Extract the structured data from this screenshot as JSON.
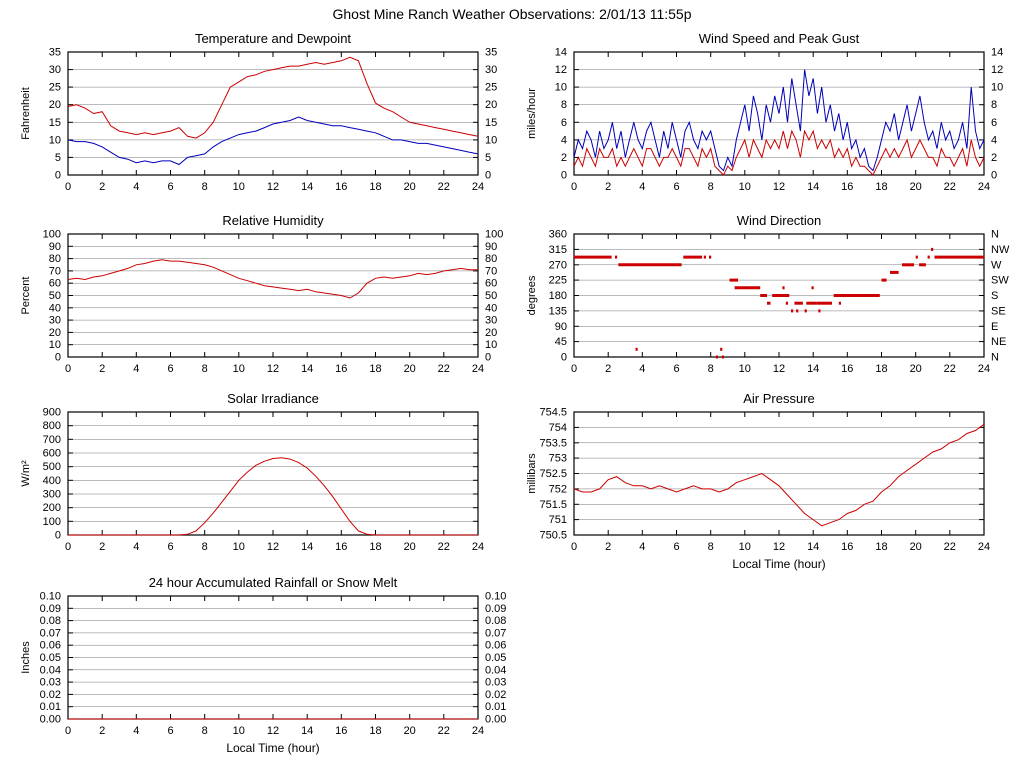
{
  "page_title": "Ghost Mine Ranch Weather Observations: 2/01/13 11:55p",
  "colors": {
    "red": "#cc0000",
    "blue": "#0000bb"
  },
  "chart_data": [
    {
      "type": "line",
      "title": "Temperature and Dewpoint",
      "xlabel": "",
      "ylabel": "Fahrenheit",
      "xlim": [
        0,
        24
      ],
      "xtick": 2,
      "ylim": [
        0,
        35
      ],
      "ytick": 5,
      "ydec": 0,
      "yfmt": "auto",
      "right": "same",
      "series": [
        {
          "name": "temperature",
          "color": "#cc0000",
          "x_step": 0.5,
          "values": [
            19.5,
            20,
            19,
            17.5,
            18,
            14,
            12.5,
            12,
            11.5,
            12,
            11.5,
            12,
            12.5,
            13.5,
            11,
            10.5,
            12,
            15,
            20,
            25,
            26.5,
            28,
            28.5,
            29.5,
            30,
            30.5,
            31,
            31,
            31.5,
            32,
            31.5,
            32,
            32.5,
            33.5,
            32.5,
            26,
            20.5,
            19,
            18,
            16.5,
            15,
            14.5,
            14,
            13.5,
            13,
            12.5,
            12,
            11.5,
            11
          ]
        },
        {
          "name": "dewpoint",
          "color": "#0000bb",
          "x_step": 0.5,
          "values": [
            10,
            9.5,
            9.5,
            9,
            8,
            6.5,
            5,
            4.5,
            3.5,
            4,
            3.5,
            4,
            4,
            3,
            5,
            5.5,
            6,
            8,
            9.5,
            10.5,
            11.5,
            12,
            12.5,
            13.5,
            14.5,
            15,
            15.5,
            16.5,
            15.5,
            15,
            14.5,
            14,
            14,
            13.5,
            13,
            12.5,
            12,
            11,
            10,
            10,
            9.5,
            9,
            9,
            8.5,
            8,
            7.5,
            7,
            6.5,
            6
          ]
        }
      ]
    },
    {
      "type": "line",
      "title": "Wind Speed and Peak Gust",
      "xlabel": "",
      "ylabel": "miles/hour",
      "xlim": [
        0,
        24
      ],
      "xtick": 2,
      "ylim": [
        0,
        14
      ],
      "ytick": 2,
      "ydec": 0,
      "yfmt": "auto",
      "right": "same",
      "series": [
        {
          "name": "peak-gust",
          "color": "#0000bb",
          "x_step": 0.25,
          "values": [
            2,
            4,
            3,
            5,
            4,
            2,
            5,
            3,
            4,
            6,
            3,
            5,
            2,
            4,
            6,
            4,
            3,
            5,
            6,
            4,
            2,
            5,
            3,
            6,
            4,
            2,
            5,
            6,
            4,
            3,
            5,
            4,
            5,
            3,
            1,
            0.5,
            2,
            1,
            4,
            6,
            8,
            5,
            9,
            7,
            4,
            8,
            6,
            9,
            7,
            10,
            6,
            11,
            8,
            5,
            12,
            9,
            11,
            7,
            10,
            6,
            8,
            5,
            7,
            4,
            6,
            3,
            4,
            2,
            3,
            1,
            0.5,
            2,
            4,
            6,
            5,
            7,
            4,
            6,
            8,
            5,
            7,
            9,
            6,
            4,
            5,
            3,
            6,
            4,
            5,
            3,
            4,
            6,
            3,
            10,
            5,
            3,
            4
          ]
        },
        {
          "name": "wind-speed",
          "color": "#cc0000",
          "x_step": 0.25,
          "values": [
            1,
            2,
            1,
            3,
            2,
            1,
            3,
            2,
            2,
            3,
            1,
            2,
            1,
            2,
            3,
            2,
            1,
            3,
            3,
            2,
            1,
            2,
            2,
            3,
            2,
            1,
            3,
            3,
            2,
            1,
            3,
            2,
            3,
            1,
            0.5,
            0,
            1,
            0.5,
            2,
            3,
            4,
            2,
            4,
            3,
            2,
            4,
            3,
            4,
            3,
            5,
            3,
            5,
            4,
            2,
            5,
            4,
            5,
            3,
            4,
            3,
            4,
            2,
            3,
            2,
            3,
            1,
            2,
            1,
            1,
            0.5,
            0,
            1,
            2,
            3,
            2,
            3,
            2,
            3,
            4,
            2,
            3,
            4,
            3,
            2,
            2,
            1,
            3,
            2,
            2,
            1,
            2,
            3,
            1,
            4,
            2,
            1,
            2
          ]
        }
      ]
    },
    {
      "type": "line",
      "title": "Relative Humidity",
      "xlabel": "",
      "ylabel": "Percent",
      "xlim": [
        0,
        24
      ],
      "xtick": 2,
      "ylim": [
        0,
        100
      ],
      "ytick": 10,
      "ydec": 0,
      "yfmt": "auto",
      "right": "same",
      "series": [
        {
          "name": "relative-humidity",
          "color": "#cc0000",
          "x_step": 0.5,
          "values": [
            63,
            64,
            63,
            65,
            66,
            68,
            70,
            72,
            75,
            76,
            78,
            79,
            78,
            78,
            77,
            76,
            75,
            73,
            70,
            67,
            64,
            62,
            60,
            58,
            57,
            56,
            55,
            54,
            55,
            53,
            52,
            51,
            50,
            48,
            52,
            60,
            64,
            65,
            64,
            65,
            66,
            68,
            67,
            68,
            70,
            71,
            72,
            71,
            71
          ]
        }
      ]
    },
    {
      "type": "scatter",
      "title": "Wind Direction",
      "xlabel": "",
      "ylabel": "degrees",
      "xlim": [
        0,
        24
      ],
      "xtick": 2,
      "ylim": [
        0,
        360
      ],
      "ytick": 45,
      "ydec": 0,
      "yfmt": "auto",
      "right": [
        "N",
        "NE",
        "E",
        "SE",
        "S",
        "SW",
        "W",
        "NW",
        "N"
      ],
      "segments": [
        {
          "name": "wind-direction",
          "color": "#cc0000",
          "points": [
            [
              0,
              2.2,
              292.5
            ],
            [
              2.4,
              2.5,
              292.5
            ],
            [
              2.6,
              6.3,
              270
            ],
            [
              3.6,
              3.7,
              22.5
            ],
            [
              6.4,
              7.5,
              292.5
            ],
            [
              7.6,
              7.7,
              292.5
            ],
            [
              7.9,
              8.0,
              292.5
            ],
            [
              8.3,
              8.4,
              0
            ],
            [
              8.55,
              8.6,
              22.5
            ],
            [
              8.65,
              8.75,
              0
            ],
            [
              9.1,
              9.6,
              225
            ],
            [
              9.4,
              10.9,
              202.5
            ],
            [
              10.9,
              11.3,
              180
            ],
            [
              11.3,
              11.5,
              157.5
            ],
            [
              11.6,
              12.6,
              180
            ],
            [
              12.2,
              12.3,
              202.5
            ],
            [
              12.4,
              12.5,
              157.5
            ],
            [
              12.7,
              12.8,
              135
            ],
            [
              12.9,
              13.4,
              157.5
            ],
            [
              13.0,
              13.1,
              135
            ],
            [
              13.5,
              13.6,
              135
            ],
            [
              13.6,
              14.2,
              157.5
            ],
            [
              13.9,
              14.0,
              202.5
            ],
            [
              14.3,
              14.4,
              135
            ],
            [
              14.2,
              15.1,
              157.5
            ],
            [
              15.2,
              17.9,
              180
            ],
            [
              15.5,
              15.6,
              157.5
            ],
            [
              18.0,
              18.3,
              225
            ],
            [
              18.5,
              19.0,
              247.5
            ],
            [
              19.2,
              19.9,
              270
            ],
            [
              20.0,
              20.1,
              292.5
            ],
            [
              20.2,
              20.6,
              270
            ],
            [
              20.7,
              20.8,
              292.5
            ],
            [
              20.9,
              21.0,
              315
            ],
            [
              21.1,
              24.0,
              292.5
            ]
          ]
        }
      ]
    },
    {
      "type": "line",
      "title": "Solar Irradiance",
      "xlabel": "",
      "ylabel": "W/m²",
      "xlim": [
        0,
        24
      ],
      "xtick": 2,
      "ylim": [
        0,
        900
      ],
      "ytick": 100,
      "ydec": 0,
      "yfmt": "auto",
      "right": "none",
      "series": [
        {
          "name": "solar-irradiance",
          "color": "#cc0000",
          "x_step": 0.5,
          "values": [
            0,
            0,
            0,
            0,
            0,
            0,
            0,
            0,
            0,
            0,
            0,
            0,
            0,
            0,
            5,
            30,
            90,
            160,
            240,
            320,
            400,
            460,
            510,
            540,
            560,
            565,
            555,
            530,
            490,
            430,
            360,
            280,
            190,
            100,
            30,
            5,
            0,
            0,
            0,
            0,
            0,
            0,
            0,
            0,
            0,
            0,
            0,
            0,
            0
          ]
        }
      ]
    },
    {
      "type": "line",
      "title": "Air Pressure",
      "xlabel": "Local Time (hour)",
      "ylabel": "millibars",
      "xlim": [
        0,
        24
      ],
      "xtick": 2,
      "ylim": [
        750.5,
        754.5
      ],
      "ytick": 0.5,
      "ydec": 1,
      "yfmt": "auto",
      "right": "none",
      "series": [
        {
          "name": "air-pressure",
          "color": "#cc0000",
          "x_step": 0.5,
          "values": [
            752,
            751.9,
            751.9,
            752,
            752.3,
            752.4,
            752.2,
            752.1,
            752.1,
            752,
            752.1,
            752,
            751.9,
            752,
            752.1,
            752,
            752,
            751.9,
            752,
            752.2,
            752.3,
            752.4,
            752.5,
            752.3,
            752.1,
            751.8,
            751.5,
            751.2,
            751,
            750.8,
            750.9,
            751,
            751.2,
            751.3,
            751.5,
            751.6,
            751.9,
            752.1,
            752.4,
            752.6,
            752.8,
            753,
            753.2,
            753.3,
            753.5,
            753.6,
            753.8,
            753.9,
            754.1
          ]
        }
      ]
    },
    {
      "type": "line",
      "title": "24 hour Accumulated Rainfall or Snow Melt",
      "xlabel": "Local Time (hour)",
      "ylabel": "Inches",
      "xlim": [
        0,
        24
      ],
      "xtick": 2,
      "ylim": [
        0,
        0.1
      ],
      "ytick": 0.01,
      "ydec": 2,
      "yfmt": "fixed",
      "right": "same",
      "series": [
        {
          "name": "accumulated-rainfall",
          "color": "#cc0000",
          "x_step": 24,
          "values": [
            0,
            0
          ]
        }
      ]
    }
  ]
}
